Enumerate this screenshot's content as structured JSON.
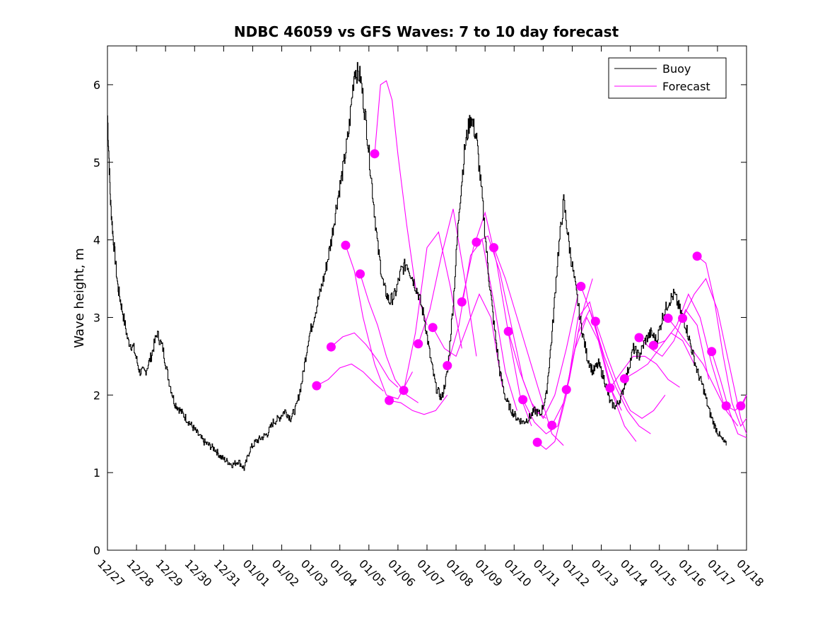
{
  "chart_data": {
    "type": "line",
    "title": "NDBC 46059 vs GFS Waves: 7 to 10 day forecast",
    "xlabel": "",
    "ylabel": "Wave height, m",
    "ylim": [
      0,
      6.5
    ],
    "xlim": [
      0,
      22
    ],
    "y_ticks": [
      0,
      1,
      2,
      3,
      4,
      5,
      6
    ],
    "y_tick_labels": [
      "0",
      "1",
      "2",
      "3",
      "4",
      "5",
      "6"
    ],
    "x_ticks": [
      0,
      1,
      2,
      3,
      4,
      5,
      6,
      7,
      8,
      9,
      10,
      11,
      12,
      13,
      14,
      15,
      16,
      17,
      18,
      19,
      20,
      21,
      22
    ],
    "x_tick_labels": [
      "12/27",
      "12/28",
      "12/29",
      "12/30",
      "12/31",
      "01/01",
      "01/02",
      "01/03",
      "01/04",
      "01/05",
      "01/06",
      "01/07",
      "01/08",
      "01/09",
      "01/10",
      "01/11",
      "01/12",
      "01/13",
      "01/14",
      "01/15",
      "01/16",
      "01/17",
      "01/18"
    ],
    "legend": {
      "position": "top-right",
      "entries": [
        "Buoy",
        "Forecast"
      ]
    },
    "colors": {
      "buoy": "#000000",
      "forecast": "#ff00ff"
    },
    "buoy": {
      "name": "Buoy",
      "x": [
        0,
        0.1,
        0.2,
        0.35,
        0.5,
        0.7,
        0.9,
        1.1,
        1.3,
        1.5,
        1.7,
        1.9,
        2.1,
        2.3,
        2.5,
        2.7,
        2.9,
        3.1,
        3.3,
        3.5,
        3.7,
        3.9,
        4.1,
        4.3,
        4.5,
        4.7,
        4.9,
        5.1,
        5.3,
        5.5,
        5.7,
        5.9,
        6.1,
        6.3,
        6.5,
        6.7,
        6.9,
        7.1,
        7.3,
        7.5,
        7.7,
        7.9,
        8.1,
        8.3,
        8.5,
        8.7,
        8.9,
        9.1,
        9.3,
        9.5,
        9.7,
        9.9,
        10.1,
        10.3,
        10.5,
        10.7,
        10.9,
        11.1,
        11.3,
        11.5,
        11.7,
        11.9,
        12.1,
        12.3,
        12.5,
        12.7,
        12.9,
        13.1,
        13.3,
        13.5,
        13.7,
        13.9,
        14.1,
        14.3,
        14.5,
        14.7,
        14.9,
        15.1,
        15.3,
        15.5,
        15.7,
        15.9,
        16.1,
        16.3,
        16.5,
        16.7,
        16.9,
        17.1,
        17.3,
        17.5,
        17.7,
        17.9,
        18.1,
        18.3,
        18.5,
        18.7,
        18.9,
        19.1,
        19.3,
        19.5,
        19.7,
        19.9,
        20.1,
        20.3,
        20.5,
        20.7,
        20.9,
        21.1,
        21.3
      ],
      "values": [
        5.6,
        4.5,
        4.0,
        3.4,
        3.1,
        2.7,
        2.6,
        2.3,
        2.3,
        2.5,
        2.8,
        2.6,
        2.2,
        1.9,
        1.8,
        1.7,
        1.6,
        1.5,
        1.4,
        1.35,
        1.3,
        1.2,
        1.15,
        1.1,
        1.15,
        1.05,
        1.3,
        1.4,
        1.45,
        1.5,
        1.65,
        1.7,
        1.8,
        1.7,
        1.85,
        2.2,
        2.7,
        3.0,
        3.3,
        3.6,
        4.0,
        4.5,
        4.9,
        5.4,
        6.2,
        6.1,
        5.5,
        4.7,
        3.9,
        3.4,
        3.2,
        3.3,
        3.6,
        3.7,
        3.5,
        3.3,
        3.0,
        2.5,
        2.1,
        1.95,
        2.3,
        3.2,
        4.4,
        5.2,
        5.6,
        5.3,
        4.5,
        3.6,
        2.9,
        2.3,
        1.95,
        1.8,
        1.7,
        1.65,
        1.7,
        1.8,
        1.75,
        2.0,
        2.8,
        3.8,
        4.5,
        3.9,
        3.4,
        2.9,
        2.5,
        2.3,
        2.4,
        2.2,
        1.9,
        1.85,
        2.0,
        2.3,
        2.6,
        2.5,
        2.7,
        2.8,
        2.7,
        3.0,
        3.2,
        3.3,
        3.1,
        2.9,
        2.6,
        2.3,
        2.1,
        1.8,
        1.6,
        1.45,
        1.35
      ]
    },
    "forecast_series": [
      {
        "name": "Forecast",
        "x": [
          7.2,
          7.6,
          8.0,
          8.4,
          8.8,
          9.2,
          9.5
        ],
        "values": [
          2.12,
          2.2,
          2.35,
          2.4,
          2.3,
          2.15,
          2.05
        ]
      },
      {
        "name": "Forecast",
        "x": [
          7.7,
          8.1,
          8.5,
          8.9,
          9.3,
          9.7,
          10.0
        ],
        "values": [
          2.62,
          2.75,
          2.8,
          2.65,
          2.45,
          2.2,
          2.1
        ]
      },
      {
        "name": "Forecast",
        "x": [
          8.2,
          8.5,
          8.8,
          9.2,
          9.6,
          10.0,
          10.5
        ],
        "values": [
          3.93,
          3.6,
          3.0,
          2.4,
          2.0,
          1.95,
          2.3
        ]
      },
      {
        "name": "Forecast",
        "x": [
          8.7,
          9.0,
          9.3,
          9.6,
          9.9,
          10.3,
          10.7
        ],
        "values": [
          3.56,
          3.2,
          2.9,
          2.5,
          2.2,
          2.0,
          1.9
        ]
      },
      {
        "name": "Forecast",
        "x": [
          9.2,
          9.4,
          9.6,
          9.8,
          10.0,
          10.3,
          10.6,
          11.0
        ],
        "values": [
          5.11,
          6.0,
          6.05,
          5.8,
          5.1,
          4.2,
          3.4,
          2.9
        ]
      },
      {
        "name": "Forecast",
        "x": [
          9.7,
          10.1,
          10.5,
          10.9,
          11.3,
          11.7
        ],
        "values": [
          1.93,
          1.9,
          1.8,
          1.75,
          1.8,
          2.0
        ]
      },
      {
        "name": "Forecast",
        "x": [
          10.2,
          10.6,
          11.0,
          11.4,
          11.8,
          12.2
        ],
        "values": [
          2.06,
          2.8,
          3.9,
          4.1,
          3.4,
          2.6
        ]
      },
      {
        "name": "Forecast",
        "x": [
          10.7,
          11.1,
          11.5,
          11.9,
          12.3,
          12.7
        ],
        "values": [
          2.66,
          3.1,
          3.8,
          4.4,
          3.5,
          2.5
        ]
      },
      {
        "name": "Forecast",
        "x": [
          11.2,
          11.6,
          12.0,
          12.4,
          12.8,
          13.2,
          13.6
        ],
        "values": [
          2.87,
          2.6,
          2.5,
          2.9,
          3.3,
          3.0,
          2.1
        ]
      },
      {
        "name": "Forecast",
        "x": [
          11.7,
          12.1,
          12.5,
          12.9,
          13.3,
          13.7,
          14.1
        ],
        "values": [
          2.38,
          2.9,
          3.8,
          4.0,
          3.2,
          2.3,
          1.8
        ]
      },
      {
        "name": "Forecast",
        "x": [
          12.2,
          12.6,
          13.0,
          13.4,
          13.8,
          14.2,
          14.6
        ],
        "values": [
          3.2,
          3.9,
          4.35,
          3.7,
          2.8,
          2.0,
          1.6
        ]
      },
      {
        "name": "Forecast",
        "x": [
          12.7,
          13.1,
          13.5,
          13.9,
          14.3,
          14.7,
          15.1
        ],
        "values": [
          3.97,
          4.05,
          3.6,
          2.9,
          2.2,
          1.8,
          1.7
        ]
      },
      {
        "name": "Forecast",
        "x": [
          13.3,
          13.7,
          14.1,
          14.5,
          14.9,
          15.3,
          15.7
        ],
        "values": [
          3.9,
          3.5,
          3.0,
          2.5,
          2.0,
          1.5,
          1.35
        ]
      },
      {
        "name": "Forecast",
        "x": [
          13.8,
          14.2,
          14.6,
          15.0,
          15.4,
          15.8,
          16.2
        ],
        "values": [
          2.82,
          2.3,
          1.9,
          1.7,
          2.0,
          2.6,
          3.3
        ]
      },
      {
        "name": "Forecast",
        "x": [
          14.3,
          14.7,
          15.1,
          15.5,
          15.9,
          16.3,
          16.7
        ],
        "values": [
          1.94,
          1.65,
          1.5,
          1.6,
          2.2,
          3.0,
          3.5
        ]
      },
      {
        "name": "Forecast",
        "x": [
          14.8,
          15.1,
          15.4,
          15.8,
          16.2,
          16.6,
          17.0
        ],
        "values": [
          1.39,
          1.3,
          1.4,
          2.0,
          3.0,
          3.2,
          2.6
        ]
      },
      {
        "name": "Forecast",
        "x": [
          15.3,
          15.7,
          16.1,
          16.5,
          16.9,
          17.3,
          17.7
        ],
        "values": [
          1.61,
          1.9,
          2.6,
          3.0,
          2.7,
          2.1,
          1.8
        ]
      },
      {
        "name": "Forecast",
        "x": [
          15.8,
          16.2,
          16.6,
          17.0,
          17.4,
          17.8,
          18.2
        ],
        "values": [
          2.07,
          2.8,
          3.1,
          2.6,
          2.0,
          1.6,
          1.4
        ]
      },
      {
        "name": "Forecast",
        "x": [
          16.3,
          16.7,
          17.1,
          17.5,
          17.9,
          18.3,
          18.7
        ],
        "values": [
          3.4,
          3.0,
          2.5,
          2.1,
          1.8,
          1.6,
          1.5
        ]
      },
      {
        "name": "Forecast",
        "x": [
          16.8,
          17.2,
          17.6,
          18.0,
          18.4,
          18.8,
          19.2
        ],
        "values": [
          2.95,
          2.5,
          2.1,
          1.8,
          1.7,
          1.8,
          2.0
        ]
      },
      {
        "name": "Forecast",
        "x": [
          17.3,
          17.7,
          18.1,
          18.5,
          18.9,
          19.3,
          19.7
        ],
        "values": [
          2.09,
          2.3,
          2.5,
          2.5,
          2.4,
          2.2,
          2.1
        ]
      },
      {
        "name": "Forecast",
        "x": [
          17.8,
          18.2,
          18.6,
          19.0,
          19.4,
          19.8,
          20.2
        ],
        "values": [
          2.21,
          2.3,
          2.4,
          2.6,
          2.8,
          2.7,
          2.4
        ]
      },
      {
        "name": "Forecast",
        "x": [
          18.3,
          18.7,
          19.1,
          19.5,
          19.9,
          20.3,
          20.7
        ],
        "values": [
          2.74,
          2.6,
          2.5,
          2.7,
          3.1,
          2.9,
          2.2
        ]
      },
      {
        "name": "Forecast",
        "x": [
          18.8,
          19.2,
          19.6,
          20.0,
          20.4,
          20.8,
          21.2
        ],
        "values": [
          2.64,
          2.7,
          2.9,
          3.3,
          3.0,
          2.4,
          1.9
        ]
      },
      {
        "name": "Forecast",
        "x": [
          19.3,
          19.7,
          20.1,
          20.5,
          20.9,
          21.3,
          21.7
        ],
        "values": [
          2.99,
          2.8,
          2.6,
          2.4,
          2.1,
          1.8,
          1.6
        ]
      },
      {
        "name": "Forecast",
        "x": [
          19.8,
          20.2,
          20.6,
          21.0,
          21.4,
          21.8,
          22.0
        ],
        "values": [
          2.99,
          3.3,
          3.5,
          3.1,
          2.4,
          1.7,
          1.5
        ]
      },
      {
        "name": "Forecast",
        "x": [
          20.3,
          20.6,
          20.9,
          21.2,
          21.5,
          21.8,
          22.0
        ],
        "values": [
          3.79,
          3.7,
          3.2,
          2.5,
          1.9,
          1.6,
          1.7
        ]
      },
      {
        "name": "Forecast",
        "x": [
          20.8,
          21.1,
          21.4,
          21.7,
          22.0
        ],
        "values": [
          2.56,
          2.2,
          1.8,
          1.5,
          1.45
        ]
      },
      {
        "name": "Forecast",
        "x": [
          21.3,
          21.6,
          21.9,
          22.0
        ],
        "values": [
          1.86,
          1.8,
          1.9,
          2.0
        ]
      },
      {
        "name": "Forecast",
        "x": [
          21.8,
          22.0
        ],
        "values": [
          1.86,
          2.0
        ]
      }
    ]
  }
}
